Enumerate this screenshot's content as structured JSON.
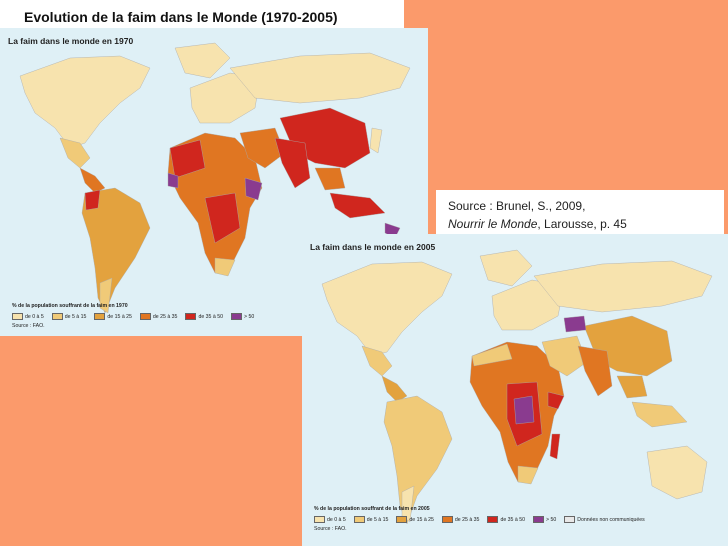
{
  "slide": {
    "title": "Evolution de la faim dans le Monde (1970-2005)",
    "source_line1": "Source : Brunel, S., 2009,",
    "source_book": "Nourrir le Monde",
    "source_rest": ", Larousse, p. 45"
  },
  "colors": {
    "ocean": "#dff0f6",
    "c0_5": "#f7e3ae",
    "c5_15": "#f0ca78",
    "c15_25": "#e3a23e",
    "c25_35": "#e07622",
    "c35_50": "#d0261e",
    "c50p": "#8a3b8f",
    "nodata": "#e8e8e8"
  },
  "map_1970": {
    "title": "La faim dans le monde en 1970",
    "legend_title": "% de la population souffrant de la faim en 1970",
    "legend": [
      {
        "label": "de 0 à 5",
        "color": "#f7e3ae"
      },
      {
        "label": "de 5 à 15",
        "color": "#f0ca78"
      },
      {
        "label": "de 15 à 25",
        "color": "#e3a23e"
      },
      {
        "label": "de 25 à 35",
        "color": "#e07622"
      },
      {
        "label": "de 35 à 50",
        "color": "#d0261e"
      },
      {
        "label": "> 50",
        "color": "#8a3b8f"
      }
    ],
    "source": "Source : FAO."
  },
  "map_2005": {
    "title": "La faim dans le monde en 2005",
    "legend_title": "% de la population souffrant de la faim en 2005",
    "legend": [
      {
        "label": "de 0 à 5",
        "color": "#f7e3ae"
      },
      {
        "label": "de 5 à 15",
        "color": "#f0ca78"
      },
      {
        "label": "de 15 à 25",
        "color": "#e3a23e"
      },
      {
        "label": "de 25 à 35",
        "color": "#e07622"
      },
      {
        "label": "de 35 à 50",
        "color": "#d0261e"
      },
      {
        "label": "> 50",
        "color": "#8a3b8f"
      },
      {
        "label": "Données non communiquées",
        "color": "#e8e8e8"
      }
    ],
    "source": "Source : FAO."
  }
}
